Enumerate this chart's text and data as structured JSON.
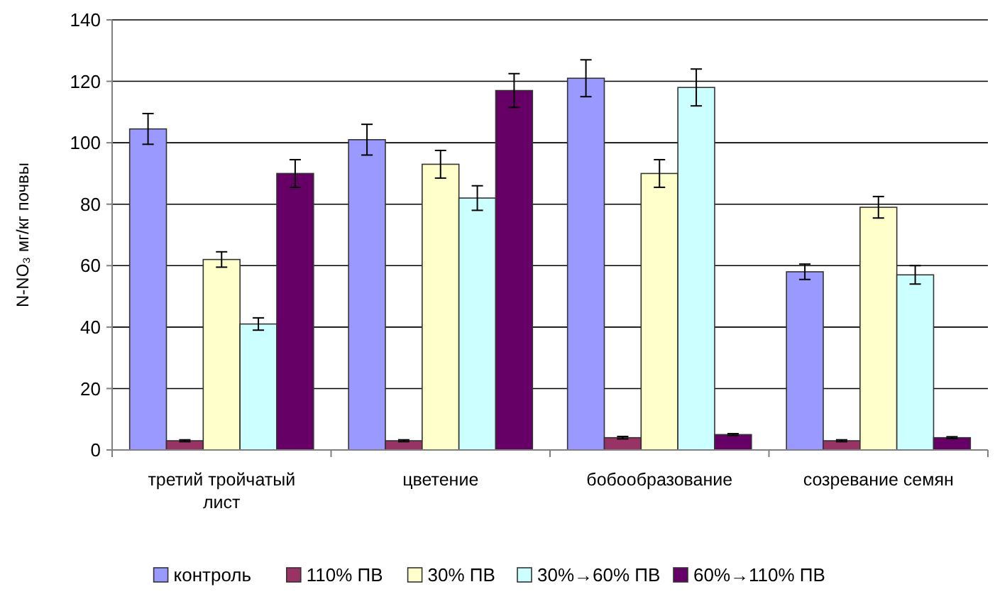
{
  "chart_data": {
    "type": "bar",
    "ylabel": "N-NO₃ мг/кг почвы",
    "categories": [
      "третий тройчатый лист",
      "цветение",
      "бобообразование",
      "созревание семян"
    ],
    "series": [
      {
        "name": "контроль",
        "color": "#9999ff",
        "values": [
          104.5,
          101,
          121,
          58
        ],
        "errors": [
          5,
          5,
          6,
          2.5
        ]
      },
      {
        "name": "110% ПВ",
        "color": "#993366",
        "values": [
          3,
          3,
          4,
          3
        ],
        "errors": [
          0.3,
          0.3,
          0.4,
          0.3
        ]
      },
      {
        "name": "30% ПВ",
        "color": "#ffffcc",
        "values": [
          62,
          93,
          90,
          79
        ],
        "errors": [
          2.5,
          4.5,
          4.5,
          3.5
        ]
      },
      {
        "name": "30%→60% ПВ",
        "color": "#ccffff",
        "values": [
          41,
          82,
          118,
          57
        ],
        "errors": [
          2,
          4,
          6,
          3
        ]
      },
      {
        "name": "60%→110% ПВ",
        "color": "#660066",
        "values": [
          90,
          117,
          5,
          4
        ],
        "errors": [
          4.5,
          5.5,
          0.3,
          0.3
        ]
      }
    ],
    "ylim": [
      0,
      140
    ],
    "yticks": [
      0,
      20,
      40,
      60,
      80,
      100,
      120,
      140
    ],
    "grid": "y",
    "legend": "bottom"
  }
}
